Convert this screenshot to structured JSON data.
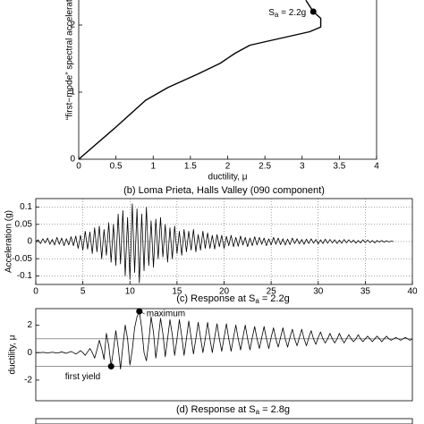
{
  "chart_data": [
    {
      "type": "line",
      "ylabel": "“first−mode” spectral acceleration",
      "xlabel": "ductility, μ",
      "x": [
        0,
        0.5,
        0.9,
        1.2,
        1.6,
        1.9,
        2.1,
        2.3,
        2.7,
        3.1,
        3.25,
        3.25,
        3.15,
        3.05
      ],
      "series": [
        {
          "color": "#000000",
          "values": [
            0,
            0.48,
            0.88,
            1.07,
            1.27,
            1.43,
            1.58,
            1.7,
            1.8,
            1.9,
            1.97,
            2.1,
            2.2,
            2.37
          ]
        }
      ],
      "xlim": [
        0,
        4
      ],
      "xticks": [
        0,
        0.5,
        1,
        1.5,
        2,
        2.5,
        3,
        3.5,
        4
      ],
      "ylim": [
        0,
        2.4
      ],
      "yticks": [
        0,
        1,
        2
      ],
      "grid": false,
      "points": [
        {
          "x": 3.15,
          "y": 2.2,
          "label": {
            "main": "S",
            "sub": "a",
            "rest": " = 2.2g"
          }
        }
      ]
    },
    {
      "type": "line",
      "title": "(b) Loma Prieta, Halls Valley (090 component)",
      "ylabel": "Acceleration (g)",
      "x": [
        0,
        0.25,
        0.5,
        0.75,
        1,
        1.25,
        1.5,
        1.75,
        2,
        2.25,
        2.5,
        2.75,
        3,
        3.25,
        3.5,
        3.75,
        4,
        4.25,
        4.5,
        4.75,
        5,
        5.25,
        5.5,
        5.75,
        6,
        6.25,
        6.5,
        6.75,
        7,
        7.25,
        7.5,
        7.75,
        8,
        8.25,
        8.5,
        8.75,
        9,
        9.25,
        9.5,
        9.75,
        10,
        10.25,
        10.5,
        10.75,
        11,
        11.25,
        11.5,
        11.75,
        12,
        12.25,
        12.5,
        12.75,
        13,
        13.25,
        13.5,
        13.75,
        14,
        14.25,
        14.5,
        14.75,
        15,
        15.25,
        15.5,
        15.75,
        16,
        16.25,
        16.5,
        16.75,
        17,
        17.25,
        17.5,
        17.75,
        18,
        18.25,
        18.5,
        18.75,
        19,
        19.25,
        19.5,
        19.75,
        20,
        20.25,
        20.5,
        20.75,
        21,
        21.25,
        21.5,
        21.75,
        22,
        22.25,
        22.5,
        22.75,
        23,
        23.25,
        23.5,
        23.75,
        24,
        24.25,
        24.5,
        24.75,
        25,
        25.25,
        25.5,
        25.75,
        26,
        26.25,
        26.5,
        26.75,
        27,
        27.25,
        27.5,
        27.75,
        28,
        28.25,
        28.5,
        28.75,
        29,
        29.25,
        29.5,
        29.75,
        30,
        30.25,
        30.5,
        30.75,
        31,
        31.25,
        31.5,
        31.75,
        32,
        32.25,
        32.5,
        32.75,
        33,
        33.25,
        33.5,
        33.75,
        34,
        34.25,
        34.5,
        34.75,
        35,
        35.25,
        35.5,
        35.75,
        36,
        36.25,
        36.5,
        36.75,
        37,
        37.25,
        37.5,
        37.75,
        38
      ],
      "series": [
        {
          "color": "#000000",
          "values": [
            0,
            0.005,
            -0.006,
            0.008,
            -0.004,
            0.01,
            -0.008,
            0.006,
            -0.01,
            0.012,
            -0.008,
            0.01,
            -0.012,
            0.008,
            -0.01,
            0.014,
            -0.012,
            0.016,
            -0.02,
            0.018,
            -0.025,
            0.03,
            -0.022,
            0.028,
            -0.035,
            0.04,
            -0.03,
            0.045,
            -0.05,
            0.035,
            -0.04,
            0.055,
            -0.06,
            0.05,
            -0.07,
            0.08,
            -0.065,
            0.09,
            -0.1,
            0.07,
            -0.11,
            0.11,
            -0.09,
            0.095,
            -0.12,
            0.08,
            -0.085,
            0.1,
            -0.07,
            0.06,
            -0.075,
            0.065,
            -0.05,
            0.07,
            -0.045,
            0.05,
            -0.06,
            0.04,
            -0.05,
            0.045,
            -0.035,
            0.03,
            -0.04,
            0.035,
            -0.03,
            0.03,
            -0.025,
            0.035,
            -0.03,
            0.02,
            -0.025,
            0.03,
            -0.02,
            0.025,
            -0.02,
            0.018,
            -0.022,
            0.02,
            -0.015,
            0.018,
            -0.02,
            0.015,
            -0.012,
            0.018,
            -0.015,
            0.012,
            -0.014,
            0.016,
            -0.01,
            0.012,
            -0.015,
            0.01,
            -0.012,
            0.014,
            -0.01,
            0.012,
            -0.008,
            0.01,
            -0.012,
            0.008,
            -0.01,
            0.012,
            -0.008,
            0.01,
            -0.009,
            0.008,
            -0.01,
            0.007,
            -0.009,
            0.01,
            -0.006,
            0.008,
            -0.007,
            0.006,
            -0.008,
            0.007,
            -0.006,
            0.008,
            -0.005,
            0.006,
            -0.007,
            0.005,
            -0.006,
            0.007,
            -0.005,
            0.006,
            -0.004,
            0.005,
            -0.006,
            0.004,
            -0.005,
            0.006,
            -0.004,
            0.005,
            -0.003,
            0.004,
            -0.005,
            0.003,
            -0.004,
            0.005,
            -0.003,
            0.004,
            -0.003,
            0.003,
            -0.004,
            0.003,
            -0.002,
            0.003,
            -0.002,
            0.002,
            -0.001,
            0.001,
            0
          ]
        }
      ],
      "xlim": [
        0,
        40
      ],
      "xticks": [
        0,
        5,
        10,
        15,
        20,
        25,
        30,
        35,
        40
      ],
      "ylim": [
        -0.125,
        0.125
      ],
      "yticks": [
        -0.1,
        -0.05,
        0,
        0.05,
        0.1
      ],
      "grid": true
    },
    {
      "type": "line",
      "title": {
        "main": "(c) Response at S",
        "sub": "a",
        "rest": " = 2.2g"
      },
      "ylabel": "ductility, μ",
      "x": [
        0,
        0.25,
        0.5,
        0.75,
        1,
        1.25,
        1.5,
        1.75,
        2,
        2.25,
        2.5,
        2.75,
        3,
        3.25,
        3.5,
        3.75,
        4,
        4.25,
        4.5,
        4.75,
        5,
        5.25,
        5.5,
        5.75,
        6,
        6.25,
        6.5,
        6.75,
        7,
        7.25,
        7.5,
        7.75,
        8,
        8.25,
        8.5,
        8.75,
        9,
        9.25,
        9.5,
        9.75,
        10,
        10.25,
        10.5,
        10.75,
        11,
        11.25,
        11.5,
        11.75,
        12,
        12.25,
        12.5,
        12.75,
        13,
        13.25,
        13.5,
        13.75,
        14,
        14.25,
        14.5,
        14.75,
        15,
        15.25,
        15.5,
        15.75,
        16,
        16.25,
        16.5,
        16.75,
        17,
        17.25,
        17.5,
        17.75,
        18,
        18.25,
        18.5,
        18.75,
        19,
        19.25,
        19.5,
        19.75,
        20,
        20.25,
        20.5,
        20.75,
        21,
        21.25,
        21.5,
        21.75,
        22,
        22.25,
        22.5,
        22.75,
        23,
        23.25,
        23.5,
        23.75,
        24,
        24.25,
        24.5,
        24.75,
        25,
        25.25,
        25.5,
        25.75,
        26,
        26.25,
        26.5,
        26.75,
        27,
        27.25,
        27.5,
        27.75,
        28,
        28.25,
        28.5,
        28.75,
        29,
        29.25,
        29.5,
        29.75,
        30,
        30.25,
        30.5,
        30.75,
        31,
        31.25,
        31.5,
        31.75,
        32,
        32.25,
        32.5,
        32.75,
        33,
        33.25,
        33.5,
        33.75,
        34,
        34.25,
        34.5,
        34.75,
        35,
        35.25,
        35.5,
        35.75,
        36,
        36.25,
        36.5,
        36.75,
        37,
        37.25,
        37.5,
        37.75,
        38,
        38.25,
        38.5,
        38.75,
        39,
        39.25,
        39.5,
        39.75,
        40
      ],
      "series": [
        {
          "color": "#000000",
          "values": [
            0,
            0,
            0,
            0.02,
            0,
            -0.02,
            0,
            0.03,
            0,
            -0.03,
            0,
            0.05,
            0,
            -0.05,
            0.02,
            0.08,
            0,
            -0.1,
            0,
            0.15,
            0,
            -0.2,
            0.05,
            0.3,
            0,
            -0.4,
            0.2,
            0.9,
            0.3,
            -0.5,
            1.4,
            0.5,
            -1.0,
            0.2,
            1.6,
            0.4,
            -1.2,
            0.5,
            2.0,
            1.0,
            -0.9,
            0.2,
            1.8,
            2.6,
            3.0,
            1.8,
            0.0,
            -0.6,
            0.8,
            2.6,
            1.5,
            -0.4,
            0.9,
            2.5,
            1.4,
            -0.3,
            1.0,
            2.4,
            1.3,
            -0.2,
            1.0,
            2.4,
            1.2,
            -0.2,
            1.0,
            2.3,
            1.1,
            -0.1,
            1.0,
            2.2,
            1.1,
            0.0,
            1.0,
            2.2,
            1.0,
            0.0,
            1.1,
            2.1,
            1.0,
            0.1,
            1.1,
            2.1,
            1.0,
            0.1,
            1.1,
            2.0,
            1.0,
            0.2,
            1.1,
            2.0,
            1.0,
            0.2,
            1.1,
            1.9,
            1.0,
            0.3,
            1.1,
            1.9,
            1.0,
            0.3,
            1.1,
            1.8,
            1.0,
            0.4,
            1.1,
            1.8,
            1.0,
            0.4,
            1.1,
            1.7,
            1.0,
            0.5,
            1.1,
            1.7,
            1.0,
            0.5,
            1.1,
            1.6,
            1.0,
            0.6,
            1.1,
            1.5,
            1.0,
            0.7,
            1.0,
            1.4,
            1.0,
            0.7,
            1.0,
            1.4,
            1.0,
            0.7,
            1.0,
            1.3,
            1.0,
            0.8,
            1.0,
            1.3,
            1.0,
            0.8,
            1.0,
            1.2,
            1.0,
            0.8,
            1.0,
            1.2,
            1.0,
            0.8,
            1.0,
            1.2,
            1.0,
            0.9,
            1.0,
            1.1,
            1.0,
            0.9,
            1.0,
            1.1,
            1.0,
            0.9,
            1.0
          ]
        }
      ],
      "xlim": [
        0,
        40
      ],
      "ylim": [
        -3.5,
        3.2
      ],
      "yticks": [
        -2,
        0,
        2
      ],
      "hlines": [
        1,
        -1
      ],
      "grid": false,
      "points": [
        {
          "x": 8,
          "y": -1,
          "label": "first yield"
        },
        {
          "x": 11,
          "y": 3,
          "label": "maximum"
        }
      ]
    },
    {
      "type": "line",
      "title": {
        "main": "(d) Response at S",
        "sub": "a",
        "rest": " = 2.8g"
      }
    }
  ]
}
